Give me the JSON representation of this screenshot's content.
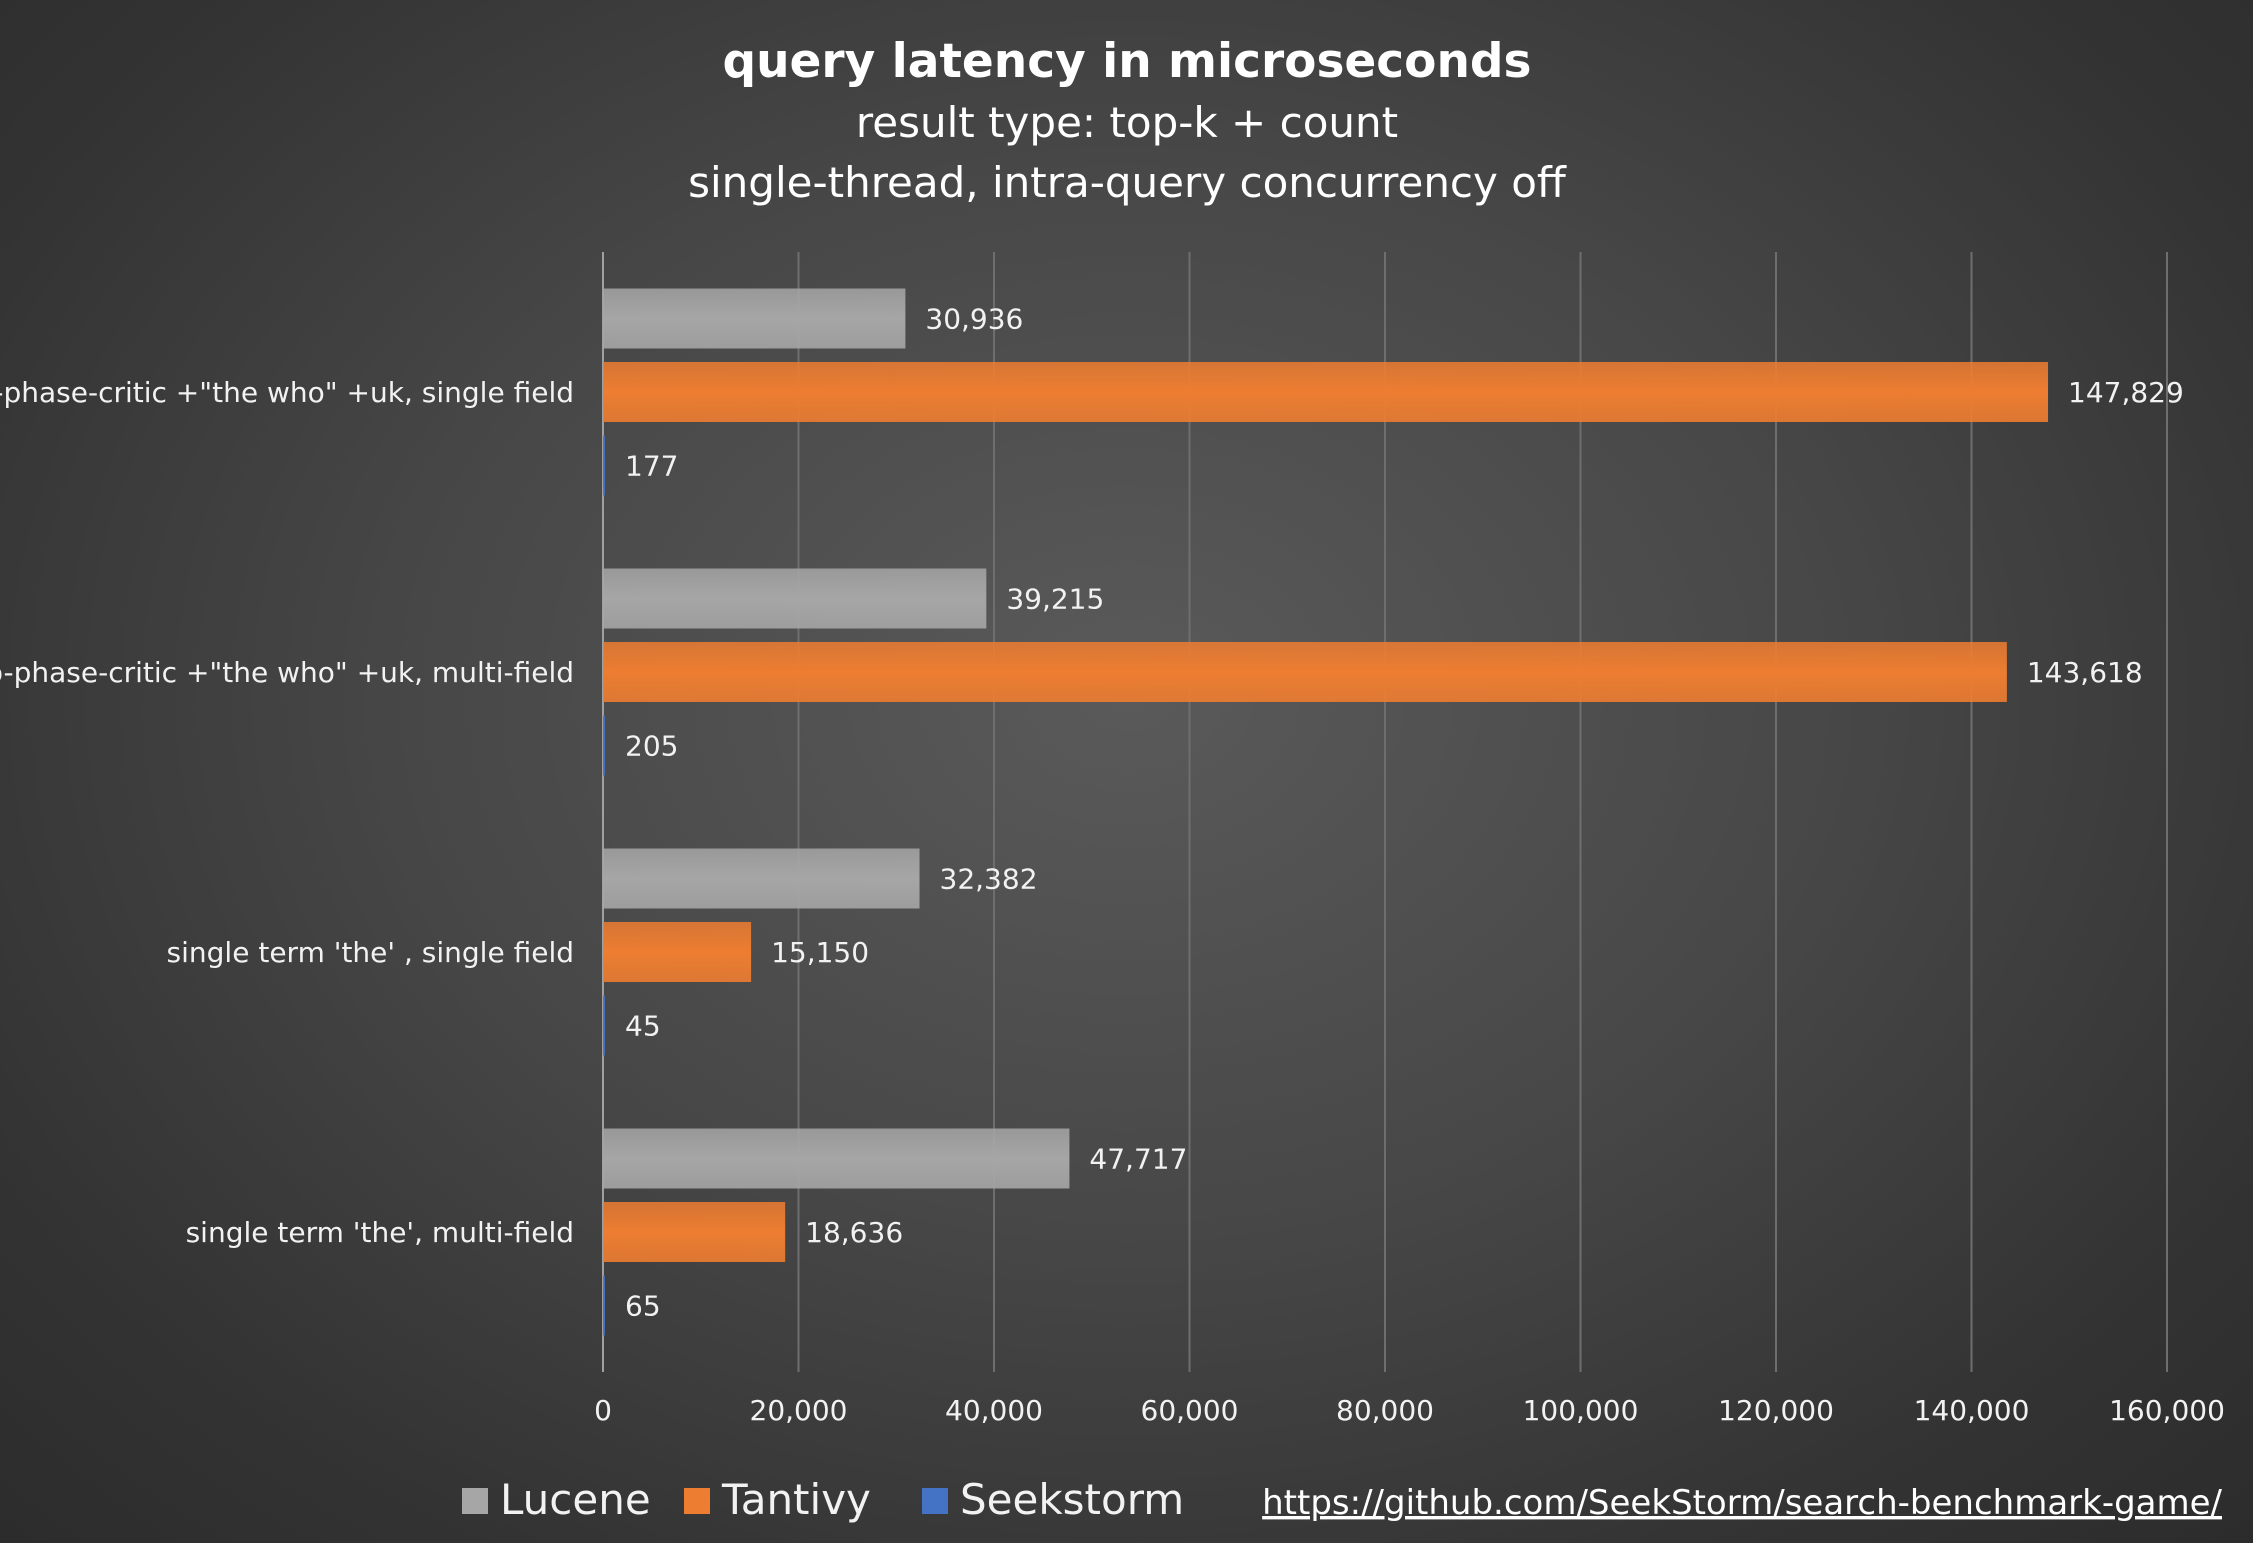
{
  "chart_data": {
    "type": "bar",
    "orientation": "horizontal",
    "title": "query latency in microseconds",
    "subtitle_lines": [
      "result type: top-k + count",
      "single-thread, intra-query concurrency off"
    ],
    "categories": [
      "two-phase-critic +\"the who\" +uk, single field",
      "two-phase-critic +\"the who\" +uk, multi-field",
      "single term 'the' , single field",
      "single term 'the', multi-field"
    ],
    "series": [
      {
        "name": "Lucene",
        "color": "#a6a6a6",
        "values": [
          30936,
          39215,
          32382,
          47717
        ],
        "labels": [
          "30,936",
          "39,215",
          "32,382",
          "47,717"
        ]
      },
      {
        "name": "Tantivy",
        "color": "#ed7d31",
        "values": [
          147829,
          143618,
          15150,
          18636
        ],
        "labels": [
          "147,829",
          "143,618",
          "15,150",
          "18,636"
        ]
      },
      {
        "name": "Seekstorm",
        "color": "#4472c4",
        "values": [
          177,
          205,
          45,
          65
        ],
        "labels": [
          "177",
          "205",
          "45",
          "65"
        ]
      }
    ],
    "xlim": [
      0,
      160000
    ],
    "x_ticks": [
      0,
      20000,
      40000,
      60000,
      80000,
      100000,
      120000,
      140000,
      160000
    ],
    "x_tick_labels": [
      "0",
      "20,000",
      "40,000",
      "60,000",
      "80,000",
      "100,000",
      "120,000",
      "140,000",
      "160,000"
    ],
    "grid": true,
    "legend": "bottom-left",
    "source_url": "https://github.com/SeekStorm/search-benchmark-game/"
  }
}
